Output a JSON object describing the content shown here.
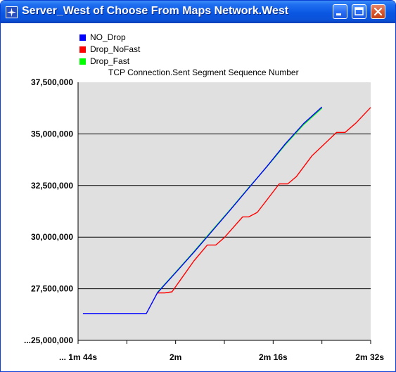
{
  "window": {
    "title": "Server_West of Choose From Maps Network.West",
    "icons": {
      "app": "opnet-star-icon",
      "minimize": "minimize-icon",
      "maximize": "maximize-icon",
      "close": "close-icon"
    }
  },
  "colors": {
    "title_bar": "#0a57e2",
    "plot_background": "#e0e0e0",
    "NO_Drop": "#0000ff",
    "Drop_NoFast": "#ff0000",
    "Drop_Fast": "#00ff00"
  },
  "chart_data": {
    "type": "line",
    "title": "TCP Connection.Sent Segment Sequence Number",
    "xlabel": "",
    "ylabel": "",
    "legend_position": "top-left",
    "grid": "horizontal",
    "xlim": [
      104,
      152
    ],
    "ylim": [
      25000000,
      37500000
    ],
    "x_tick_values": [
      104,
      112,
      120,
      128,
      136,
      144,
      152
    ],
    "x_tick_labels": [
      {
        "x": 104,
        "label": "... 1m 44s"
      },
      {
        "x": 120,
        "label": "2m"
      },
      {
        "x": 136,
        "label": "2m 16s"
      },
      {
        "x": 152,
        "label": "2m 32s"
      }
    ],
    "y_tick_labels": [
      {
        "y": 37500000,
        "label": "37,500,000"
      },
      {
        "y": 35000000,
        "label": "35,000,000"
      },
      {
        "y": 32500000,
        "label": "32,500,000"
      },
      {
        "y": 30000000,
        "label": "30,000,000"
      },
      {
        "y": 27500000,
        "label": "27,500,000"
      },
      {
        "y": 25000000,
        "label": "...25,000,000"
      }
    ],
    "series": [
      {
        "name": "NO_Drop",
        "x": [
          104.8,
          115.2,
          117.0,
          120.0,
          123.0,
          126.0,
          129.0,
          132.0,
          135.0,
          138.0,
          141.0,
          144.0
        ],
        "y": [
          26300000,
          26300000,
          27300000,
          28280000,
          29270000,
          30300000,
          31330000,
          32380000,
          33430000,
          34520000,
          35500000,
          36300000
        ]
      },
      {
        "name": "Drop_NoFast",
        "x": [
          117.0,
          118.2,
          119.4,
          123.0,
          125.2,
          126.6,
          128.0,
          131.0,
          132.0,
          133.4,
          137.0,
          138.4,
          139.8,
          142.4,
          144.2,
          146.4,
          147.8,
          149.6,
          152.0
        ],
        "y": [
          27300000,
          27300000,
          27350000,
          28850000,
          29620000,
          29620000,
          29980000,
          30980000,
          30980000,
          31200000,
          32580000,
          32580000,
          32930000,
          33950000,
          34450000,
          35070000,
          35070000,
          35530000,
          36280000
        ]
      },
      {
        "name": "Drop_Fast",
        "x": [
          117.0,
          120.0,
          123.0,
          126.0,
          129.0,
          132.0,
          135.0,
          138.0,
          141.0,
          144.0
        ],
        "y": [
          27320000,
          28300000,
          29300000,
          30330000,
          31350000,
          32400000,
          33420000,
          34480000,
          35450000,
          36250000
        ]
      }
    ]
  }
}
